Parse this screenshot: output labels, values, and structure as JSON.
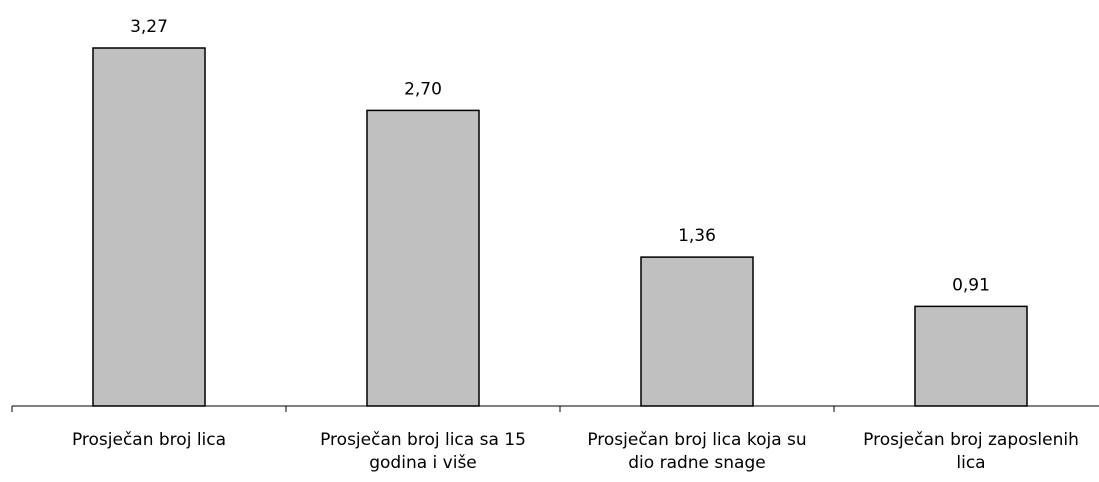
{
  "chart_data": {
    "type": "bar",
    "title": "",
    "xlabel": "",
    "ylabel": "",
    "categories": [
      [
        "Prosječan broj lica"
      ],
      [
        "Prosječan broj lica sa 15",
        "godina i više"
      ],
      [
        "Prosječan broj lica koja su",
        "dio radne snage"
      ],
      [
        "Prosječan broj zaposlenih",
        "lica"
      ]
    ],
    "values": [
      3.27,
      2.7,
      1.36,
      0.91
    ],
    "value_labels": [
      "3,27",
      "2,70",
      "1,36",
      "0,91"
    ],
    "ylim": [
      0,
      3.27
    ],
    "grid": false,
    "legend": "none",
    "bar_color": "#c0c0c0",
    "bar_border_color": "#000000"
  }
}
